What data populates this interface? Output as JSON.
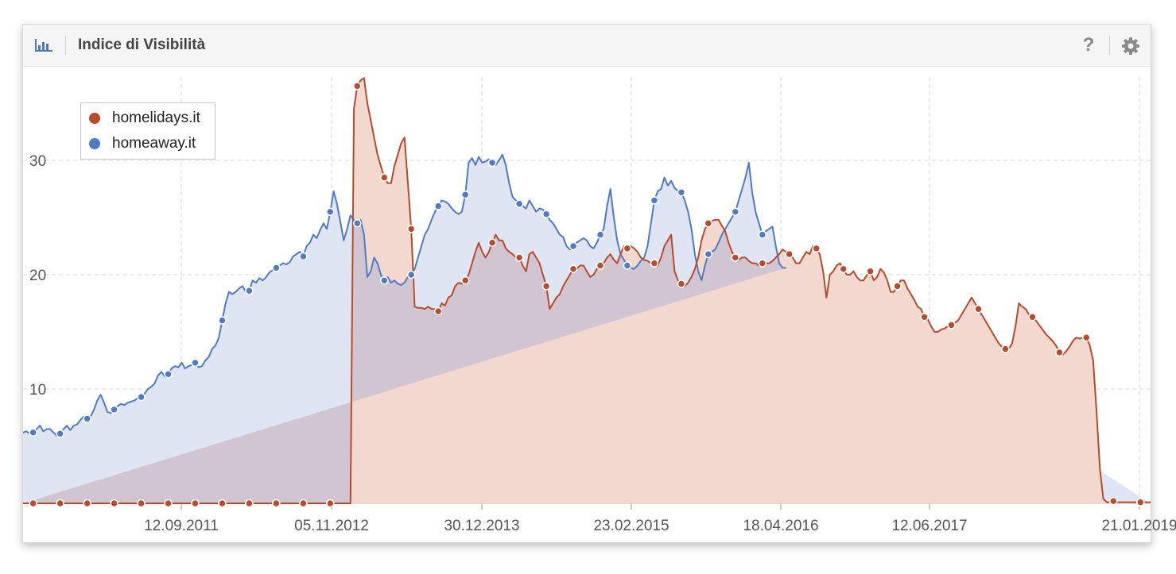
{
  "header": {
    "title": "Indice di Visibilità",
    "chart_icon": "bar-chart-icon",
    "help_icon": "question-mark-icon",
    "help_label": "?",
    "settings_icon": "gear-icon"
  },
  "colors": {
    "homelidays": "#b94a2c",
    "homelidays_fill": "#f2d8cf",
    "homeaway": "#4f7ac8",
    "homeaway_fill": "#dfe5f3",
    "overlap_fill": "#d1c5d1",
    "accent_icon": "#4a76c5"
  },
  "chart_data": {
    "type": "area",
    "title": "Indice di Visibilità",
    "x_ticks": [
      "12.09.2011",
      "05.11.2012",
      "30.12.2013",
      "23.02.2015",
      "18.04.2016",
      "12.06.2017",
      "21.01.2019"
    ],
    "y_ticks": [
      10,
      20,
      30
    ],
    "ylim": [
      0,
      38
    ],
    "grid": true,
    "legend_position": "top-left",
    "series": [
      {
        "name": "homelidays.it",
        "key": "homelidays",
        "values": [
          0,
          0,
          0,
          0,
          0,
          0,
          0,
          0,
          0,
          0,
          0,
          0,
          0,
          0,
          0,
          0,
          0,
          0,
          0,
          0,
          0,
          0,
          0,
          0,
          0,
          0,
          0,
          0,
          0,
          0,
          0,
          0,
          0,
          0,
          0,
          0,
          0,
          0,
          0,
          0,
          0,
          0,
          0,
          0,
          0,
          0,
          0,
          0,
          0,
          0,
          0,
          0,
          0,
          0,
          0,
          0,
          0,
          0,
          0,
          0,
          0,
          0,
          0,
          0,
          0,
          0,
          0,
          0,
          0,
          0,
          0,
          0,
          0,
          0,
          0,
          0,
          0,
          0,
          0,
          0,
          0,
          0,
          0,
          0,
          0,
          0,
          0,
          0,
          0,
          0,
          0,
          0,
          0,
          0,
          0,
          0,
          0,
          0,
          34.5,
          36.5,
          37,
          37.2,
          35,
          33.5,
          32,
          30.5,
          29.5,
          28.5,
          28,
          28,
          29.5,
          30.5,
          31.5,
          32,
          28,
          24,
          17.2,
          17.1,
          17.1,
          17,
          17.2,
          17,
          17,
          16.8,
          17.5,
          17.3,
          18,
          18.2,
          19,
          19.3,
          19.2,
          19.5,
          20,
          21,
          22,
          22.8,
          22,
          21.5,
          22,
          22.8,
          23.5,
          23,
          23,
          22.3,
          22,
          21.8,
          21.5,
          21.5,
          20.8,
          20.3,
          21.8,
          22,
          21.5,
          21,
          20,
          19,
          17,
          17.5,
          18,
          18.3,
          19,
          19.5,
          20,
          20.5,
          20.5,
          20.8,
          20.8,
          20.3,
          19.8,
          20,
          20.5,
          20.8,
          21,
          21.5,
          21.8,
          21.3,
          21,
          21.8,
          22.5,
          22.3,
          22.5,
          22.3,
          22,
          21.5,
          21.3,
          21.2,
          21,
          21,
          20.8,
          21.5,
          22.5,
          23,
          23.5,
          20.3,
          19.5,
          19.2,
          19,
          19.3,
          19.8,
          20.5,
          21.5,
          23,
          24,
          24.5,
          24.7,
          24.8,
          24.8,
          24.3,
          23.8,
          22.8,
          22,
          21.5,
          21.3,
          21.5,
          21.5,
          21.2,
          21,
          21,
          20.8,
          21,
          21,
          21,
          21.2,
          21.5,
          21.8,
          22.2,
          22,
          21.8,
          21.5,
          21,
          21,
          21.5,
          22,
          21.8,
          22.5,
          22.3,
          21.8,
          20.3,
          18,
          20,
          20.3,
          20.8,
          21,
          20.5,
          20,
          20,
          20.3,
          19.8,
          19.5,
          19.5,
          20,
          20.3,
          19.5,
          19.8,
          20.5,
          20.2,
          19.5,
          18.5,
          18.5,
          19,
          19.5,
          19.5,
          18.8,
          18.3,
          17.8,
          17.2,
          17,
          16.3,
          16.1,
          15.5,
          15,
          15,
          15.2,
          15.3,
          15.5,
          15.6,
          15.8,
          16,
          16.5,
          17,
          17.5,
          18,
          17.5,
          17,
          16.5,
          16,
          15.5,
          15,
          14.5,
          14,
          13.7,
          13.5,
          13.5,
          14,
          15.5,
          17.5,
          17.2,
          17,
          16.5,
          16.3,
          16,
          15.6,
          15.2,
          14.8,
          14.5,
          14.2,
          13.8,
          13.2,
          13,
          13.3,
          13.7,
          14.2,
          14.5,
          14.4,
          14.5,
          14.5,
          13.8,
          12.5,
          8,
          3,
          0.4,
          0.1,
          0.1,
          0.2,
          0.1,
          0.1,
          0.1,
          0.1,
          0.1,
          0.1,
          0.1,
          0.1,
          0.1,
          0.1,
          0.1
        ]
      },
      {
        "name": "homeaway.it",
        "key": "homeaway",
        "values": [
          6.2,
          6.3,
          6.1,
          6.2,
          6.5,
          6.8,
          6.3,
          6.5,
          6.5,
          6.2,
          5.9,
          6.1,
          6.5,
          6.8,
          6.4,
          6.8,
          6.9,
          7.3,
          7.6,
          7.4,
          7.6,
          8.2,
          9,
          9.5,
          8.8,
          8,
          7.9,
          8.2,
          8.5,
          8.7,
          8.6,
          8.8,
          8.9,
          9,
          9.2,
          9.3,
          9.6,
          10,
          10.2,
          10.5,
          11.2,
          11.5,
          11.1,
          11.3,
          11.8,
          12,
          11.9,
          12.3,
          11.8,
          12,
          12.1,
          12.3,
          11.9,
          12,
          12.5,
          12.8,
          13.5,
          13.8,
          14.5,
          16,
          17.5,
          18.5,
          18.3,
          18.5,
          18.8,
          19,
          18.5,
          18.6,
          19.5,
          19.3,
          19.7,
          19.5,
          19.8,
          20.2,
          20.4,
          20.6,
          20.8,
          21,
          20.9,
          21.1,
          21.6,
          21.8,
          22,
          21.6,
          22.5,
          22.8,
          23.5,
          23.2,
          23.9,
          24.5,
          24,
          25.5,
          27.3,
          26.2,
          24.6,
          23,
          24,
          25.2,
          24.8,
          24.5,
          24.8,
          23.5,
          19.8,
          20.3,
          21.5,
          21,
          20,
          19.5,
          19.8,
          19.3,
          19.5,
          19.2,
          19.1,
          19.3,
          19.8,
          20,
          20.5,
          21.5,
          22.5,
          23.5,
          24,
          24.8,
          25.5,
          26,
          26.5,
          26.4,
          26.2,
          25.8,
          25.5,
          25.3,
          25.5,
          27,
          29.8,
          30.2,
          29.6,
          30.3,
          29.8,
          29.9,
          30.1,
          29.8,
          29.6,
          30,
          30.5,
          29.6,
          28,
          26.8,
          26.5,
          26.2,
          26,
          25.8,
          26.5,
          26,
          25.5,
          25.8,
          25.7,
          25.3,
          24.8,
          24.5,
          24,
          23.5,
          23.3,
          22.5,
          22.2,
          22.5,
          22.8,
          23,
          23.2,
          23,
          22.5,
          22.3,
          22.8,
          23.5,
          24,
          26,
          27.5,
          25,
          23,
          21.8,
          21.3,
          20.8,
          20.6,
          20.5,
          20.8,
          21.2,
          21.5,
          22.5,
          24.5,
          26.5,
          27.3,
          27.5,
          28.5,
          27.8,
          28.2,
          27.6,
          27.3,
          27.2,
          26.5,
          25.5,
          24,
          21.8,
          20.3,
          19.5,
          20.8,
          21.8,
          22,
          22.2,
          22.8,
          23.5,
          24,
          24.5,
          25,
          25.5,
          26.5,
          27.5,
          28.5,
          29.8,
          27.2,
          25.5,
          24.5,
          23.5,
          23.8,
          24,
          24.2,
          22.5,
          21,
          20.6,
          20.6
        ]
      }
    ]
  }
}
